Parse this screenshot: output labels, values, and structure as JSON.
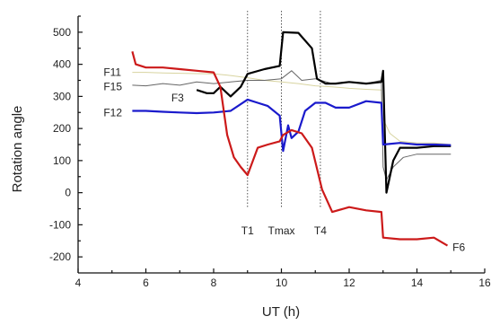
{
  "chart_data": {
    "type": "line",
    "title": "",
    "xlabel": "UT (h)",
    "ylabel": "Rotation angle",
    "xlim": [
      4,
      16
    ],
    "ylim": [
      -250,
      550
    ],
    "xticks": [
      4,
      6,
      8,
      10,
      12,
      14,
      16
    ],
    "yticks": [
      -200,
      -100,
      0,
      100,
      200,
      300,
      400,
      500
    ],
    "grid": false,
    "legend": "none",
    "vlines": [
      {
        "x": 9.0,
        "label": "T1"
      },
      {
        "x": 10.0,
        "label": "Tmax"
      },
      {
        "x": 11.15,
        "label": "T4"
      }
    ],
    "series": [
      {
        "name": "F11",
        "color": "#d8d4a0",
        "width": 1,
        "x": [
          5.6,
          6.0,
          6.5,
          7.0,
          7.5,
          8.0,
          8.5,
          9.0,
          9.5,
          10.0,
          10.5,
          11.0,
          11.5,
          12.0,
          12.5,
          12.95,
          13.0,
          13.2,
          13.5,
          14.0,
          14.5,
          15.0
        ],
        "values": [
          375,
          375,
          373,
          372,
          371,
          370,
          365,
          358,
          350,
          345,
          340,
          333,
          330,
          325,
          322,
          320,
          230,
          185,
          160,
          155,
          155,
          150
        ]
      },
      {
        "name": "F15",
        "color": "#666666",
        "width": 1,
        "x": [
          5.6,
          6.0,
          6.5,
          7.0,
          7.5,
          8.0,
          8.5,
          9.0,
          9.5,
          10.0,
          10.3,
          10.6,
          11.0,
          11.5,
          12.0,
          12.5,
          12.95,
          13.0,
          13.1,
          13.3,
          13.6,
          14.0,
          14.5,
          15.0
        ],
        "values": [
          335,
          333,
          340,
          335,
          345,
          340,
          345,
          350,
          350,
          355,
          380,
          350,
          355,
          340,
          345,
          340,
          350,
          80,
          40,
          80,
          110,
          120,
          120,
          120
        ]
      },
      {
        "name": "F3",
        "color": "#000000",
        "width": 2.2,
        "x": [
          7.5,
          7.8,
          8.0,
          8.2,
          8.5,
          8.8,
          9.0,
          9.5,
          9.95,
          10.05,
          10.5,
          10.9,
          11.05,
          11.3,
          11.6,
          12.0,
          12.5,
          12.95,
          13.0,
          13.1,
          13.3,
          13.5,
          14.0,
          14.5,
          15.0
        ],
        "values": [
          320,
          310,
          310,
          330,
          300,
          330,
          370,
          385,
          395,
          500,
          498,
          450,
          355,
          340,
          340,
          345,
          340,
          345,
          380,
          0,
          100,
          140,
          140,
          145,
          145
        ]
      },
      {
        "name": "F12",
        "color": "#1a1acc",
        "width": 2.2,
        "x": [
          5.6,
          6.0,
          6.5,
          7.0,
          7.5,
          8.0,
          8.5,
          9.0,
          9.3,
          9.6,
          9.95,
          10.05,
          10.2,
          10.3,
          10.5,
          10.7,
          11.0,
          11.3,
          11.6,
          12.0,
          12.5,
          12.95,
          13.0,
          13.5,
          14.0,
          14.5,
          15.0
        ],
        "values": [
          255,
          255,
          252,
          250,
          248,
          250,
          255,
          290,
          280,
          270,
          240,
          130,
          210,
          170,
          190,
          255,
          280,
          280,
          265,
          265,
          285,
          280,
          150,
          155,
          150,
          150,
          148
        ]
      },
      {
        "name": "F6",
        "color": "#cc1a1a",
        "width": 2.2,
        "x": [
          5.6,
          5.7,
          6.0,
          6.5,
          7.0,
          7.5,
          8.0,
          8.2,
          8.4,
          8.6,
          8.8,
          9.0,
          9.3,
          9.6,
          9.95,
          10.05,
          10.3,
          10.6,
          10.9,
          11.2,
          11.5,
          12.0,
          12.5,
          12.95,
          13.0,
          13.5,
          14.0,
          14.5,
          14.9
        ],
        "values": [
          440,
          400,
          390,
          390,
          385,
          380,
          375,
          330,
          180,
          110,
          80,
          55,
          140,
          150,
          160,
          180,
          195,
          185,
          140,
          10,
          -60,
          -45,
          -55,
          -60,
          -140,
          -145,
          -145,
          -140,
          -165
        ]
      }
    ],
    "annotations": [
      {
        "text": "F11",
        "x": 4.75,
        "y": 375
      },
      {
        "text": "F15",
        "x": 4.75,
        "y": 330
      },
      {
        "text": "F3",
        "x": 6.75,
        "y": 295
      },
      {
        "text": "F12",
        "x": 4.75,
        "y": 250
      },
      {
        "text": "F6",
        "x": 15.05,
        "y": -170
      }
    ]
  }
}
